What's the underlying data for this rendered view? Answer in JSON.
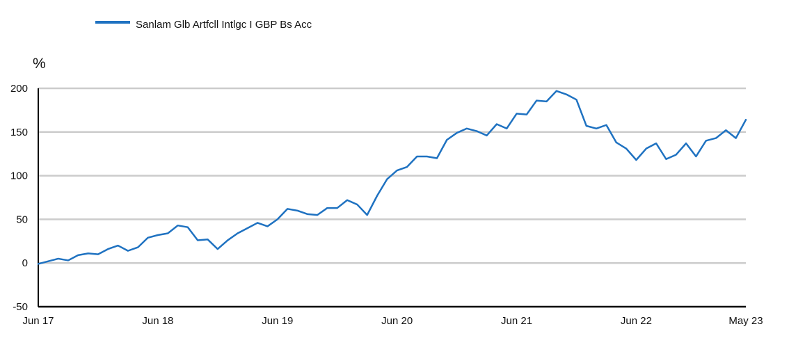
{
  "chart_data": {
    "type": "line",
    "legend": {
      "position": "top-left"
    },
    "unit_label": "%",
    "y_ticks": [
      200,
      150,
      100,
      50,
      0,
      -50
    ],
    "ylim": [
      -50,
      200
    ],
    "x_tick_labels": [
      "Jun 17",
      "Jun 18",
      "Jun 19",
      "Jun 20",
      "Jun 21",
      "Jun 22",
      "May 23"
    ],
    "grid": true,
    "series": [
      {
        "name": "Sanlam Glb Artfcll Intlgc I GBP Bs Acc",
        "color": "#1f72c1",
        "x_months": [
          "2017-06",
          "2017-07",
          "2017-08",
          "2017-09",
          "2017-10",
          "2017-11",
          "2017-12",
          "2018-01",
          "2018-02",
          "2018-03",
          "2018-04",
          "2018-05",
          "2018-06",
          "2018-07",
          "2018-08",
          "2018-09",
          "2018-10",
          "2018-11",
          "2018-12",
          "2019-01",
          "2019-02",
          "2019-03",
          "2019-04",
          "2019-05",
          "2019-06",
          "2019-07",
          "2019-08",
          "2019-09",
          "2019-10",
          "2019-11",
          "2019-12",
          "2020-01",
          "2020-02",
          "2020-03",
          "2020-04",
          "2020-05",
          "2020-06",
          "2020-07",
          "2020-08",
          "2020-09",
          "2020-10",
          "2020-11",
          "2020-12",
          "2021-01",
          "2021-02",
          "2021-03",
          "2021-04",
          "2021-05",
          "2021-06",
          "2021-07",
          "2021-08",
          "2021-09",
          "2021-10",
          "2021-11",
          "2021-12",
          "2022-01",
          "2022-02",
          "2022-03",
          "2022-04",
          "2022-05",
          "2022-06",
          "2022-07",
          "2022-08",
          "2022-09",
          "2022-10",
          "2022-11",
          "2022-12",
          "2023-01",
          "2023-02",
          "2023-03",
          "2023-04",
          "2023-05"
        ],
        "values": [
          -1,
          2,
          5,
          3,
          9,
          11,
          10,
          16,
          20,
          14,
          18,
          29,
          32,
          34,
          43,
          41,
          26,
          27,
          16,
          26,
          34,
          40,
          46,
          42,
          50,
          62,
          60,
          56,
          55,
          63,
          63,
          72,
          67,
          55,
          77,
          96,
          106,
          110,
          122,
          122,
          120,
          141,
          149,
          154,
          151,
          146,
          159,
          154,
          171,
          170,
          186,
          185,
          197,
          193,
          187,
          157,
          154,
          158,
          138,
          131,
          118,
          131,
          137,
          119,
          124,
          137,
          122,
          140,
          143,
          152,
          143,
          164
        ]
      }
    ]
  }
}
